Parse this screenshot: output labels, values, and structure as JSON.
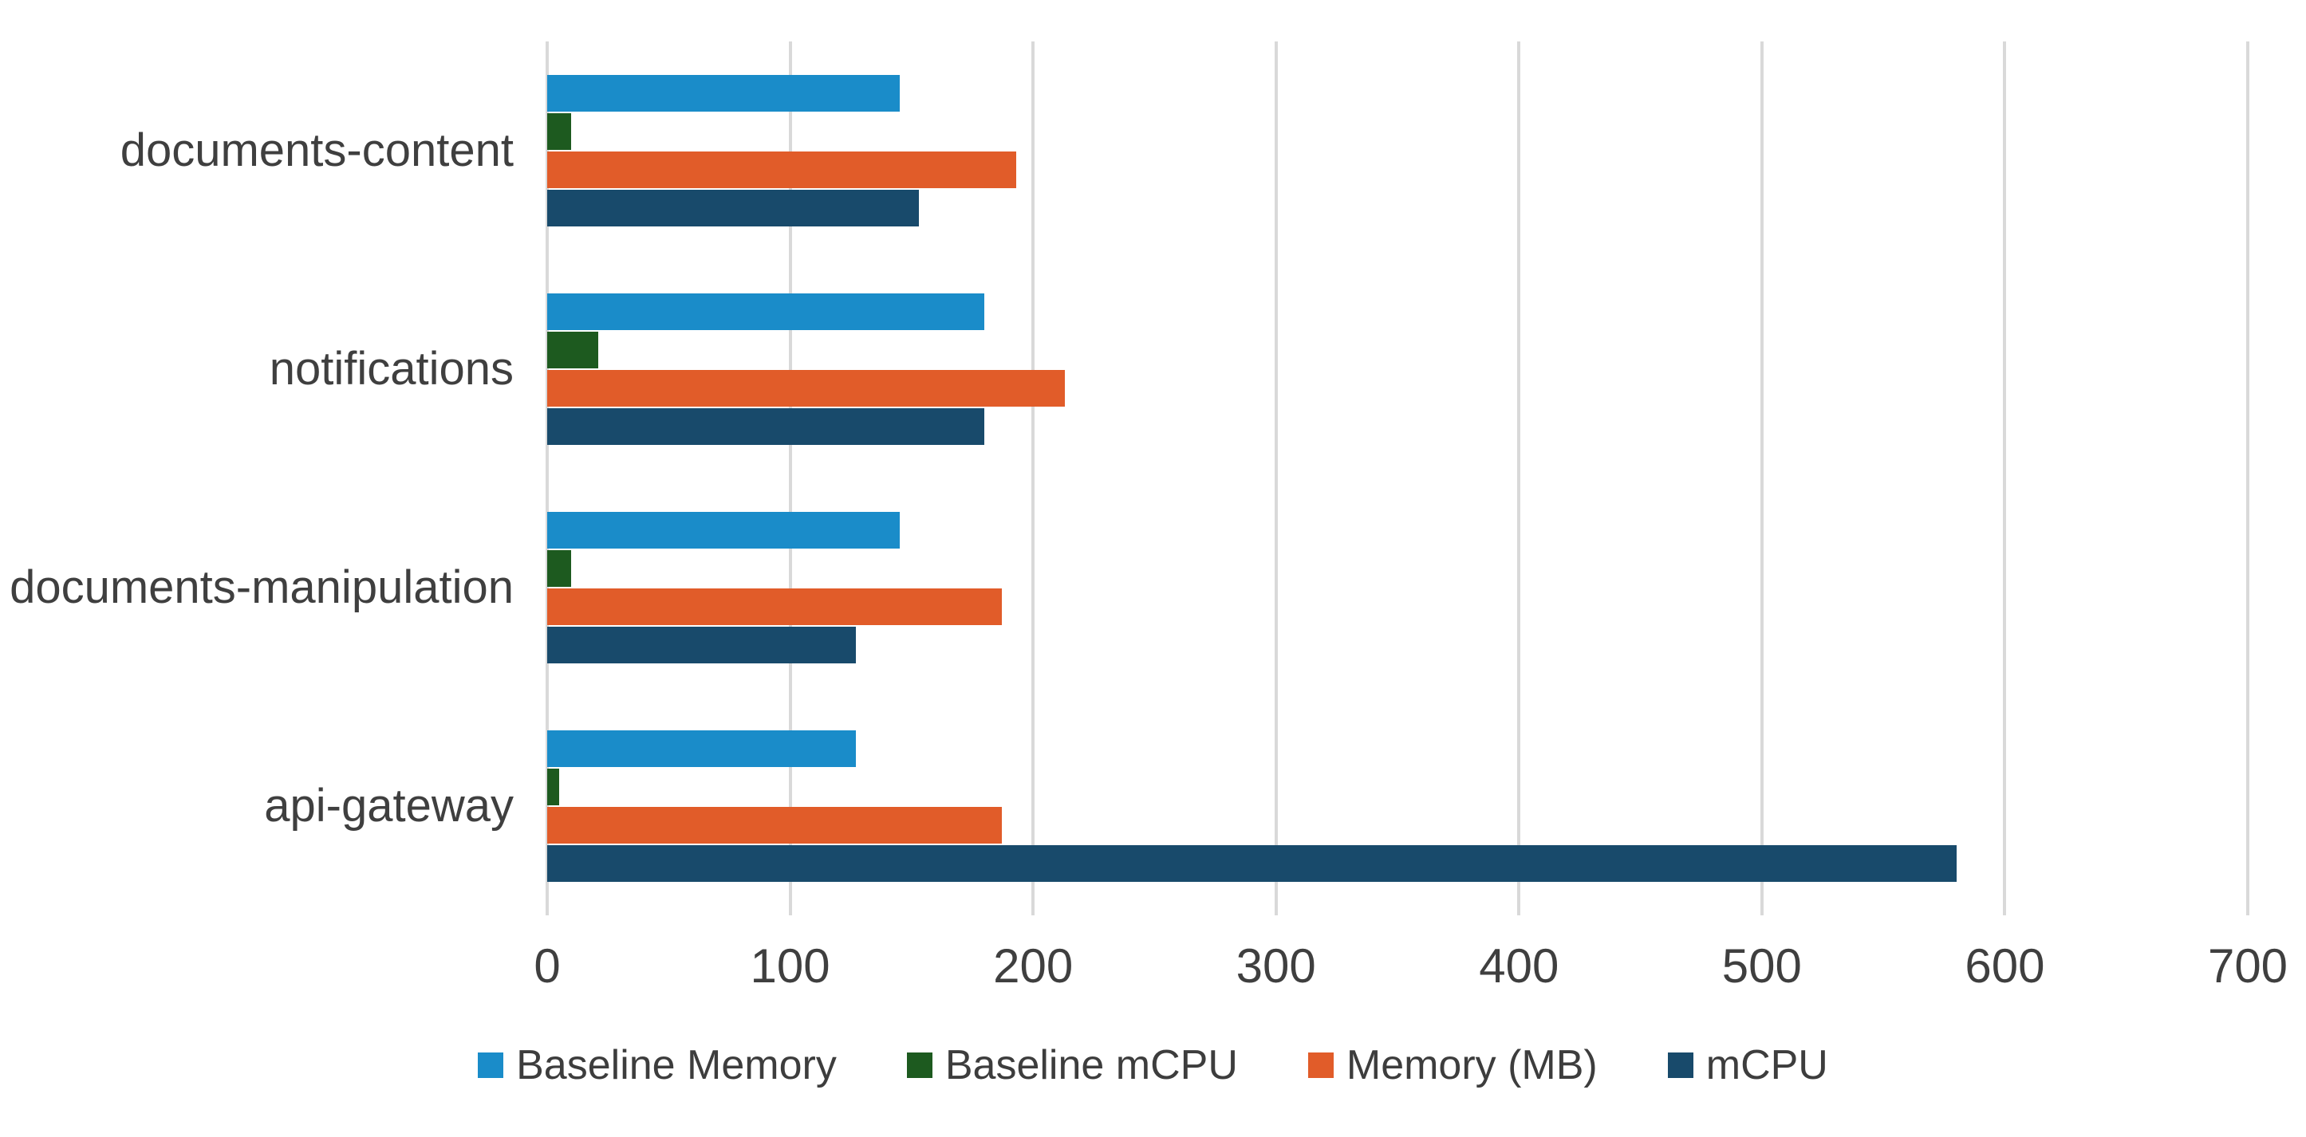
{
  "chart_data": {
    "type": "bar",
    "orientation": "horizontal",
    "title": "",
    "xlabel": "",
    "ylabel": "",
    "grid": true,
    "legend_position": "bottom",
    "categories": [
      "documents-content",
      "notifications",
      "documents-manipulation",
      "api-gateway"
    ],
    "series": [
      {
        "name": "Baseline Memory",
        "color": "#1A8CC9",
        "values": [
          145,
          180,
          145,
          127
        ]
      },
      {
        "name": "Baseline mCPU",
        "color": "#1D5A1F",
        "values": [
          10,
          21,
          10,
          5
        ]
      },
      {
        "name": "Memory (MB)",
        "color": "#E15C29",
        "values": [
          193,
          213,
          187,
          187
        ]
      },
      {
        "name": "mCPU",
        "color": "#184A6B",
        "values": [
          153,
          180,
          127,
          580
        ]
      }
    ],
    "x_axis": {
      "min": 0,
      "max": 700,
      "tick_interval": 100,
      "ticks": [
        "0",
        "100",
        "200",
        "300",
        "400",
        "500",
        "600",
        "700"
      ]
    },
    "colors": {
      "gridline": "#D9D9D9",
      "axis_text": "#3F3F3F",
      "category_text": "#3F3F3F",
      "legend_text": "#3D3D3D",
      "background": "#FFFFFF"
    }
  }
}
